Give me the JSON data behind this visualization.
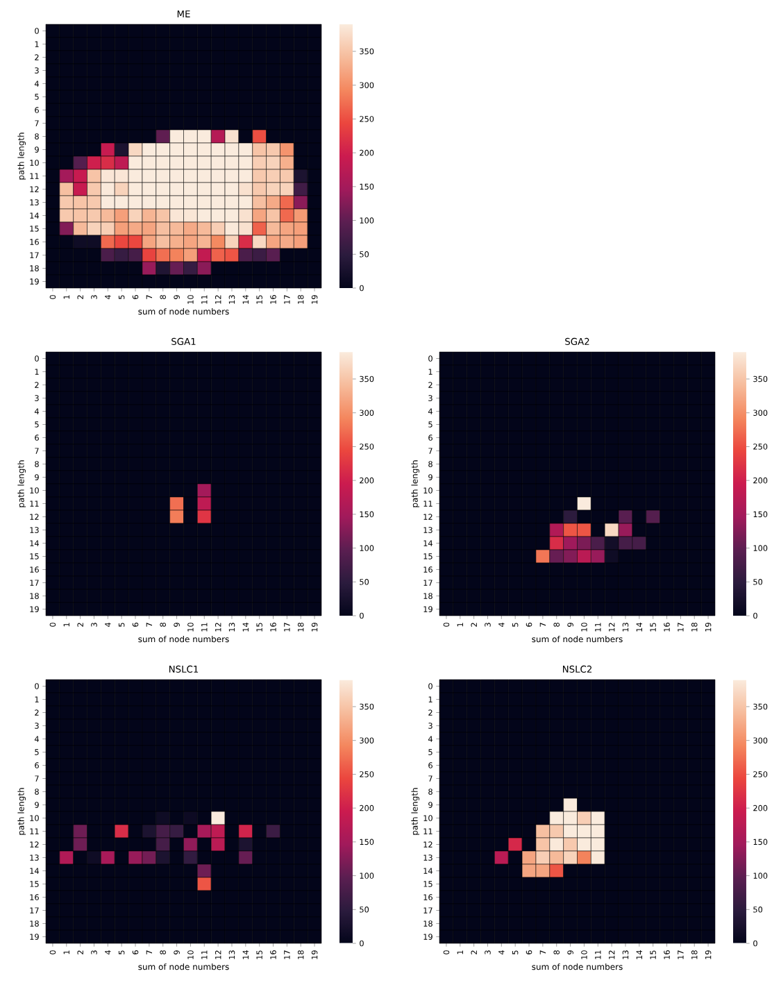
{
  "chart_data": [
    {
      "type": "heatmap",
      "title": "ME",
      "xlabel": "sum of node numbers",
      "ylabel": "path length",
      "categories": [
        "0",
        "1",
        "2",
        "3",
        "4",
        "5",
        "6",
        "7",
        "8",
        "9",
        "10",
        "11",
        "12",
        "13",
        "14",
        "15",
        "16",
        "17",
        "18",
        "19"
      ],
      "y_categories": [
        "0",
        "1",
        "2",
        "3",
        "4",
        "5",
        "6",
        "7",
        "8",
        "9",
        "10",
        "11",
        "12",
        "13",
        "14",
        "15",
        "16",
        "17",
        "18",
        "19"
      ],
      "clim": [
        0,
        390
      ],
      "cticks": [
        0,
        50,
        100,
        150,
        200,
        250,
        300,
        350
      ],
      "cells": [
        [
          0,
          0,
          0,
          0,
          0,
          0,
          0,
          0,
          0,
          0,
          0,
          0,
          0,
          0,
          0,
          0,
          0,
          0,
          0,
          0
        ],
        [
          0,
          0,
          0,
          0,
          0,
          0,
          0,
          0,
          0,
          0,
          0,
          0,
          0,
          0,
          0,
          0,
          0,
          0,
          0,
          0
        ],
        [
          0,
          0,
          0,
          0,
          0,
          0,
          0,
          0,
          0,
          0,
          0,
          0,
          0,
          0,
          0,
          0,
          0,
          0,
          0,
          0
        ],
        [
          0,
          0,
          0,
          0,
          0,
          0,
          0,
          0,
          0,
          0,
          0,
          0,
          0,
          0,
          0,
          0,
          0,
          0,
          0,
          0
        ],
        [
          0,
          0,
          0,
          0,
          0,
          0,
          0,
          0,
          0,
          0,
          0,
          0,
          0,
          0,
          0,
          0,
          0,
          0,
          0,
          0
        ],
        [
          0,
          0,
          0,
          0,
          0,
          0,
          0,
          0,
          0,
          0,
          0,
          0,
          0,
          0,
          0,
          0,
          0,
          0,
          0,
          0
        ],
        [
          0,
          0,
          0,
          0,
          0,
          0,
          0,
          0,
          0,
          0,
          0,
          0,
          0,
          0,
          0,
          0,
          0,
          0,
          0,
          0
        ],
        [
          0,
          0,
          0,
          0,
          0,
          0,
          0,
          0,
          0,
          0,
          0,
          0,
          0,
          0,
          0,
          0,
          0,
          0,
          0,
          0
        ],
        [
          0,
          0,
          0,
          0,
          0,
          0,
          0,
          0,
          100,
          390,
          390,
          390,
          170,
          380,
          0,
          250,
          0,
          0,
          0,
          0
        ],
        [
          0,
          0,
          0,
          0,
          190,
          30,
          370,
          390,
          390,
          390,
          390,
          390,
          390,
          390,
          390,
          350,
          355,
          305,
          0,
          0
        ],
        [
          0,
          0,
          90,
          200,
          215,
          180,
          390,
          390,
          390,
          390,
          390,
          390,
          390,
          390,
          390,
          360,
          365,
          330,
          0,
          0
        ],
        [
          0,
          150,
          190,
          350,
          385,
          385,
          390,
          390,
          390,
          390,
          390,
          390,
          390,
          390,
          390,
          355,
          360,
          355,
          30,
          0
        ],
        [
          0,
          345,
          190,
          355,
          388,
          365,
          390,
          390,
          390,
          390,
          390,
          390,
          390,
          390,
          380,
          355,
          365,
          365,
          70,
          0
        ],
        [
          0,
          355,
          350,
          355,
          390,
          390,
          390,
          390,
          390,
          390,
          390,
          390,
          390,
          390,
          390,
          345,
          325,
          270,
          130,
          0
        ],
        [
          0,
          355,
          350,
          355,
          340,
          315,
          365,
          335,
          350,
          385,
          385,
          390,
          390,
          390,
          380,
          320,
          350,
          270,
          310,
          0
        ],
        [
          0,
          125,
          340,
          365,
          360,
          315,
          325,
          320,
          345,
          340,
          325,
          340,
          360,
          388,
          380,
          265,
          340,
          320,
          315,
          0
        ],
        [
          0,
          0,
          15,
          15,
          270,
          245,
          245,
          320,
          345,
          330,
          320,
          335,
          295,
          365,
          215,
          370,
          320,
          325,
          315,
          0
        ],
        [
          0,
          0,
          0,
          0,
          80,
          60,
          75,
          240,
          275,
          290,
          315,
          185,
          265,
          255,
          80,
          65,
          95,
          0,
          0,
          0
        ],
        [
          0,
          0,
          0,
          0,
          0,
          0,
          0,
          140,
          35,
          105,
          60,
          130,
          0,
          0,
          0,
          0,
          0,
          0,
          0,
          0
        ],
        [
          0,
          0,
          0,
          0,
          0,
          0,
          0,
          0,
          0,
          0,
          0,
          0,
          0,
          0,
          0,
          0,
          0,
          0,
          0,
          0
        ]
      ]
    },
    {
      "type": "heatmap",
      "title": "SGA1",
      "xlabel": "sum of node numbers",
      "ylabel": "path length",
      "categories": [
        "0",
        "1",
        "2",
        "3",
        "4",
        "5",
        "6",
        "7",
        "8",
        "9",
        "10",
        "11",
        "12",
        "13",
        "14",
        "15",
        "16",
        "17",
        "18",
        "19"
      ],
      "y_categories": [
        "0",
        "1",
        "2",
        "3",
        "4",
        "5",
        "6",
        "7",
        "8",
        "9",
        "10",
        "11",
        "12",
        "13",
        "14",
        "15",
        "16",
        "17",
        "18",
        "19"
      ],
      "clim": [
        0,
        390
      ],
      "cticks": [
        0,
        50,
        100,
        150,
        200,
        250,
        300,
        350
      ],
      "cells": [
        [
          0,
          0,
          0,
          0,
          0,
          0,
          0,
          0,
          0,
          0,
          0,
          0,
          0,
          0,
          0,
          0,
          0,
          0,
          0,
          0
        ],
        [
          0,
          0,
          0,
          0,
          0,
          0,
          0,
          0,
          0,
          0,
          0,
          0,
          0,
          0,
          0,
          0,
          0,
          0,
          0,
          0
        ],
        [
          0,
          0,
          0,
          0,
          0,
          0,
          0,
          0,
          0,
          0,
          0,
          0,
          0,
          0,
          0,
          0,
          0,
          0,
          0,
          0
        ],
        [
          0,
          0,
          0,
          0,
          0,
          0,
          0,
          0,
          0,
          0,
          0,
          0,
          0,
          0,
          0,
          0,
          0,
          0,
          0,
          0
        ],
        [
          0,
          0,
          0,
          0,
          0,
          0,
          0,
          0,
          0,
          0,
          0,
          0,
          0,
          0,
          0,
          0,
          0,
          0,
          0,
          0
        ],
        [
          0,
          0,
          0,
          0,
          0,
          0,
          0,
          0,
          0,
          0,
          0,
          0,
          0,
          0,
          0,
          0,
          0,
          0,
          0,
          0
        ],
        [
          0,
          0,
          0,
          0,
          0,
          0,
          0,
          0,
          0,
          0,
          0,
          0,
          0,
          0,
          0,
          0,
          0,
          0,
          0,
          0
        ],
        [
          0,
          0,
          0,
          0,
          0,
          0,
          0,
          0,
          0,
          0,
          0,
          0,
          0,
          0,
          0,
          0,
          0,
          0,
          0,
          0
        ],
        [
          0,
          0,
          0,
          0,
          0,
          0,
          0,
          0,
          0,
          0,
          0,
          0,
          0,
          0,
          0,
          0,
          0,
          0,
          0,
          0
        ],
        [
          0,
          0,
          0,
          0,
          0,
          0,
          0,
          0,
          0,
          0,
          0,
          0,
          0,
          0,
          0,
          0,
          0,
          0,
          0,
          0
        ],
        [
          0,
          0,
          0,
          0,
          0,
          0,
          0,
          0,
          0,
          0,
          0,
          150,
          0,
          0,
          0,
          0,
          0,
          0,
          0,
          0
        ],
        [
          0,
          0,
          0,
          0,
          0,
          0,
          0,
          0,
          0,
          275,
          0,
          180,
          0,
          0,
          0,
          0,
          0,
          0,
          0,
          0
        ],
        [
          0,
          0,
          0,
          0,
          0,
          0,
          0,
          0,
          0,
          285,
          0,
          225,
          0,
          0,
          0,
          0,
          0,
          0,
          0,
          0
        ],
        [
          0,
          0,
          0,
          0,
          0,
          0,
          0,
          0,
          0,
          0,
          0,
          0,
          0,
          0,
          0,
          0,
          0,
          0,
          0,
          0
        ],
        [
          0,
          0,
          0,
          0,
          0,
          0,
          0,
          0,
          0,
          0,
          0,
          0,
          0,
          0,
          0,
          0,
          0,
          0,
          0,
          0
        ],
        [
          0,
          0,
          0,
          0,
          0,
          0,
          0,
          0,
          0,
          0,
          0,
          0,
          0,
          0,
          0,
          0,
          0,
          0,
          0,
          0
        ],
        [
          0,
          0,
          0,
          0,
          0,
          0,
          0,
          0,
          0,
          0,
          0,
          0,
          0,
          0,
          0,
          0,
          0,
          0,
          0,
          0
        ],
        [
          0,
          0,
          0,
          0,
          0,
          0,
          0,
          0,
          0,
          0,
          0,
          0,
          0,
          0,
          0,
          0,
          0,
          0,
          0,
          0
        ],
        [
          0,
          0,
          0,
          0,
          0,
          0,
          0,
          0,
          0,
          0,
          0,
          0,
          0,
          0,
          0,
          0,
          0,
          0,
          0,
          0
        ],
        [
          0,
          0,
          0,
          0,
          0,
          0,
          0,
          0,
          0,
          0,
          0,
          0,
          0,
          0,
          0,
          0,
          0,
          0,
          0,
          0
        ]
      ]
    },
    {
      "type": "heatmap",
      "title": "SGA2",
      "xlabel": "sum of node numbers",
      "ylabel": "path length",
      "categories": [
        "0",
        "1",
        "2",
        "3",
        "4",
        "5",
        "6",
        "7",
        "8",
        "9",
        "10",
        "11",
        "12",
        "13",
        "14",
        "15",
        "16",
        "17",
        "18",
        "19"
      ],
      "y_categories": [
        "0",
        "1",
        "2",
        "3",
        "4",
        "5",
        "6",
        "7",
        "8",
        "9",
        "10",
        "11",
        "12",
        "13",
        "14",
        "15",
        "16",
        "17",
        "18",
        "19"
      ],
      "clim": [
        0,
        390
      ],
      "cticks": [
        0,
        50,
        100,
        150,
        200,
        250,
        300,
        350
      ],
      "cells": [
        [
          0,
          0,
          0,
          0,
          0,
          0,
          0,
          0,
          0,
          0,
          0,
          0,
          0,
          0,
          0,
          0,
          0,
          0,
          0,
          0
        ],
        [
          0,
          0,
          0,
          0,
          0,
          0,
          0,
          0,
          0,
          0,
          0,
          0,
          0,
          0,
          0,
          0,
          0,
          0,
          0,
          0
        ],
        [
          0,
          0,
          0,
          0,
          0,
          0,
          0,
          0,
          0,
          0,
          0,
          0,
          0,
          0,
          0,
          0,
          0,
          0,
          0,
          0
        ],
        [
          0,
          0,
          0,
          0,
          0,
          0,
          0,
          0,
          0,
          0,
          0,
          0,
          0,
          0,
          0,
          0,
          0,
          0,
          0,
          0
        ],
        [
          0,
          0,
          0,
          0,
          0,
          0,
          0,
          0,
          0,
          0,
          0,
          0,
          0,
          0,
          0,
          0,
          0,
          0,
          0,
          0
        ],
        [
          0,
          0,
          0,
          0,
          0,
          0,
          0,
          0,
          0,
          0,
          0,
          0,
          0,
          0,
          0,
          0,
          0,
          0,
          0,
          0
        ],
        [
          0,
          0,
          0,
          0,
          0,
          0,
          0,
          0,
          0,
          0,
          0,
          0,
          0,
          0,
          0,
          0,
          0,
          0,
          0,
          0
        ],
        [
          0,
          0,
          0,
          0,
          0,
          0,
          0,
          0,
          0,
          0,
          0,
          0,
          0,
          0,
          0,
          0,
          0,
          0,
          0,
          0
        ],
        [
          0,
          0,
          0,
          0,
          0,
          0,
          0,
          0,
          0,
          0,
          0,
          0,
          0,
          0,
          0,
          0,
          0,
          0,
          0,
          0
        ],
        [
          0,
          0,
          0,
          0,
          0,
          0,
          0,
          0,
          0,
          0,
          0,
          0,
          0,
          0,
          0,
          0,
          0,
          0,
          0,
          0
        ],
        [
          0,
          0,
          0,
          0,
          0,
          0,
          0,
          0,
          0,
          0,
          0,
          0,
          0,
          0,
          0,
          0,
          0,
          0,
          0,
          0
        ],
        [
          0,
          0,
          0,
          0,
          0,
          0,
          0,
          0,
          0,
          0,
          390,
          0,
          0,
          0,
          0,
          0,
          0,
          0,
          0,
          0
        ],
        [
          0,
          0,
          0,
          0,
          0,
          0,
          0,
          0,
          0,
          50,
          0,
          0,
          0,
          95,
          0,
          90,
          0,
          0,
          0,
          0
        ],
        [
          0,
          0,
          0,
          0,
          0,
          0,
          0,
          0,
          165,
          255,
          255,
          0,
          370,
          140,
          0,
          0,
          0,
          0,
          0,
          0
        ],
        [
          0,
          0,
          0,
          0,
          0,
          0,
          0,
          0,
          215,
          145,
          120,
          80,
          20,
          75,
          75,
          0,
          0,
          0,
          0,
          0
        ],
        [
          0,
          0,
          0,
          0,
          0,
          0,
          0,
          280,
          105,
          125,
          175,
          140,
          15,
          0,
          0,
          0,
          0,
          0,
          0,
          0
        ],
        [
          0,
          0,
          0,
          0,
          0,
          0,
          0,
          0,
          0,
          0,
          0,
          0,
          0,
          0,
          0,
          0,
          0,
          0,
          0,
          0
        ],
        [
          0,
          0,
          0,
          0,
          0,
          0,
          0,
          0,
          0,
          0,
          0,
          0,
          0,
          0,
          0,
          0,
          0,
          0,
          0,
          0
        ],
        [
          0,
          0,
          0,
          0,
          0,
          0,
          0,
          0,
          0,
          0,
          0,
          0,
          0,
          0,
          0,
          0,
          0,
          0,
          0,
          0
        ],
        [
          0,
          0,
          0,
          0,
          0,
          0,
          0,
          0,
          0,
          0,
          0,
          0,
          0,
          0,
          0,
          0,
          0,
          0,
          0,
          0
        ]
      ]
    },
    {
      "type": "heatmap",
      "title": "NSLC1",
      "xlabel": "sum of node numbers",
      "ylabel": "path length",
      "categories": [
        "0",
        "1",
        "2",
        "3",
        "4",
        "5",
        "6",
        "7",
        "8",
        "9",
        "10",
        "11",
        "12",
        "13",
        "14",
        "15",
        "16",
        "17",
        "18",
        "19"
      ],
      "y_categories": [
        "0",
        "1",
        "2",
        "3",
        "4",
        "5",
        "6",
        "7",
        "8",
        "9",
        "10",
        "11",
        "12",
        "13",
        "14",
        "15",
        "16",
        "17",
        "18",
        "19"
      ],
      "clim": [
        0,
        390
      ],
      "cticks": [
        0,
        50,
        100,
        150,
        200,
        250,
        300,
        350
      ],
      "cells": [
        [
          0,
          0,
          0,
          0,
          0,
          0,
          0,
          0,
          0,
          0,
          0,
          0,
          0,
          0,
          0,
          0,
          0,
          0,
          0,
          0
        ],
        [
          0,
          0,
          0,
          0,
          0,
          0,
          0,
          0,
          0,
          0,
          0,
          0,
          0,
          0,
          0,
          0,
          0,
          0,
          0,
          0
        ],
        [
          0,
          0,
          0,
          0,
          0,
          0,
          0,
          0,
          0,
          0,
          0,
          0,
          0,
          0,
          0,
          0,
          0,
          0,
          0,
          0
        ],
        [
          0,
          0,
          0,
          0,
          0,
          0,
          0,
          0,
          0,
          0,
          0,
          0,
          0,
          0,
          0,
          0,
          0,
          0,
          0,
          0
        ],
        [
          0,
          0,
          0,
          0,
          0,
          0,
          0,
          0,
          0,
          0,
          0,
          0,
          0,
          0,
          0,
          0,
          0,
          0,
          0,
          0
        ],
        [
          0,
          0,
          0,
          0,
          0,
          0,
          0,
          0,
          0,
          0,
          0,
          0,
          0,
          0,
          0,
          0,
          0,
          0,
          0,
          0
        ],
        [
          0,
          0,
          0,
          0,
          0,
          0,
          0,
          0,
          0,
          0,
          0,
          0,
          0,
          0,
          0,
          0,
          0,
          0,
          0,
          0
        ],
        [
          0,
          0,
          0,
          0,
          0,
          0,
          0,
          0,
          0,
          0,
          0,
          0,
          0,
          0,
          0,
          0,
          0,
          0,
          0,
          0
        ],
        [
          0,
          0,
          0,
          0,
          0,
          0,
          0,
          0,
          0,
          0,
          0,
          0,
          0,
          0,
          0,
          0,
          0,
          0,
          0,
          0
        ],
        [
          0,
          0,
          0,
          0,
          0,
          0,
          0,
          0,
          0,
          0,
          0,
          0,
          0,
          0,
          0,
          0,
          0,
          0,
          0,
          0
        ],
        [
          0,
          0,
          0,
          0,
          0,
          0,
          0,
          0,
          15,
          0,
          12,
          0,
          390,
          0,
          0,
          0,
          0,
          0,
          0,
          0
        ],
        [
          0,
          0,
          110,
          0,
          0,
          215,
          0,
          30,
          75,
          60,
          0,
          155,
          180,
          0,
          205,
          0,
          65,
          0,
          0,
          0
        ],
        [
          0,
          0,
          110,
          0,
          0,
          0,
          0,
          0,
          75,
          0,
          135,
          0,
          175,
          0,
          30,
          0,
          0,
          0,
          0,
          0
        ],
        [
          0,
          165,
          0,
          15,
          155,
          0,
          140,
          115,
          30,
          0,
          55,
          0,
          0,
          0,
          105,
          0,
          0,
          0,
          0,
          0
        ],
        [
          0,
          0,
          0,
          0,
          0,
          0,
          0,
          0,
          0,
          0,
          0,
          110,
          0,
          0,
          0,
          0,
          0,
          0,
          0,
          0
        ],
        [
          0,
          0,
          0,
          0,
          0,
          0,
          0,
          0,
          0,
          0,
          0,
          255,
          0,
          0,
          0,
          0,
          0,
          0,
          0,
          0
        ],
        [
          0,
          0,
          0,
          0,
          0,
          0,
          0,
          0,
          0,
          0,
          0,
          0,
          0,
          0,
          0,
          0,
          0,
          0,
          0,
          0
        ],
        [
          0,
          0,
          0,
          0,
          0,
          0,
          0,
          0,
          0,
          0,
          0,
          0,
          0,
          0,
          0,
          0,
          0,
          0,
          0,
          0
        ],
        [
          0,
          0,
          0,
          0,
          0,
          0,
          0,
          0,
          0,
          0,
          0,
          0,
          0,
          0,
          0,
          0,
          0,
          0,
          0,
          0
        ],
        [
          0,
          0,
          0,
          0,
          0,
          0,
          0,
          0,
          0,
          0,
          0,
          0,
          0,
          0,
          0,
          0,
          0,
          0,
          0,
          0
        ]
      ]
    },
    {
      "type": "heatmap",
      "title": "NSLC2",
      "xlabel": "sum of node numbers",
      "ylabel": "path length",
      "categories": [
        "0",
        "1",
        "2",
        "3",
        "4",
        "5",
        "6",
        "7",
        "8",
        "9",
        "10",
        "11",
        "12",
        "13",
        "14",
        "15",
        "16",
        "17",
        "18",
        "19"
      ],
      "y_categories": [
        "0",
        "1",
        "2",
        "3",
        "4",
        "5",
        "6",
        "7",
        "8",
        "9",
        "10",
        "11",
        "12",
        "13",
        "14",
        "15",
        "16",
        "17",
        "18",
        "19"
      ],
      "clim": [
        0,
        390
      ],
      "cticks": [
        0,
        50,
        100,
        150,
        200,
        250,
        300,
        350
      ],
      "cells": [
        [
          0,
          0,
          0,
          0,
          0,
          0,
          0,
          0,
          0,
          0,
          0,
          0,
          0,
          0,
          0,
          0,
          0,
          0,
          0,
          0
        ],
        [
          0,
          0,
          0,
          0,
          0,
          0,
          0,
          0,
          0,
          0,
          0,
          0,
          0,
          0,
          0,
          0,
          0,
          0,
          0,
          0
        ],
        [
          0,
          0,
          0,
          0,
          0,
          0,
          0,
          0,
          0,
          0,
          0,
          0,
          0,
          0,
          0,
          0,
          0,
          0,
          0,
          0
        ],
        [
          0,
          0,
          0,
          0,
          0,
          0,
          0,
          0,
          0,
          0,
          0,
          0,
          0,
          0,
          0,
          0,
          0,
          0,
          0,
          0
        ],
        [
          0,
          0,
          0,
          0,
          0,
          0,
          0,
          0,
          0,
          0,
          0,
          0,
          0,
          0,
          0,
          0,
          0,
          0,
          0,
          0
        ],
        [
          0,
          0,
          0,
          0,
          0,
          0,
          0,
          0,
          0,
          0,
          0,
          0,
          0,
          0,
          0,
          0,
          0,
          0,
          0,
          0
        ],
        [
          0,
          0,
          0,
          0,
          0,
          0,
          0,
          0,
          0,
          0,
          0,
          0,
          0,
          0,
          0,
          0,
          0,
          0,
          0,
          0
        ],
        [
          0,
          0,
          0,
          0,
          0,
          0,
          0,
          0,
          0,
          0,
          0,
          0,
          0,
          0,
          0,
          0,
          0,
          0,
          0,
          0
        ],
        [
          0,
          0,
          0,
          0,
          0,
          0,
          0,
          0,
          0,
          0,
          0,
          0,
          0,
          0,
          0,
          0,
          0,
          0,
          0,
          0
        ],
        [
          0,
          0,
          0,
          0,
          0,
          0,
          0,
          0,
          0,
          390,
          0,
          0,
          0,
          0,
          0,
          0,
          0,
          0,
          0,
          0
        ],
        [
          0,
          0,
          0,
          0,
          0,
          0,
          0,
          0,
          390,
          390,
          360,
          390,
          0,
          0,
          0,
          0,
          0,
          0,
          0,
          0
        ],
        [
          0,
          0,
          0,
          0,
          0,
          0,
          0,
          345,
          355,
          390,
          390,
          390,
          0,
          0,
          0,
          0,
          0,
          0,
          0,
          0
        ],
        [
          0,
          0,
          0,
          0,
          0,
          210,
          0,
          350,
          388,
          355,
          390,
          390,
          0,
          0,
          0,
          0,
          0,
          0,
          0,
          0
        ],
        [
          0,
          0,
          0,
          0,
          175,
          0,
          320,
          360,
          340,
          365,
          290,
          388,
          0,
          0,
          0,
          0,
          0,
          0,
          0,
          0
        ],
        [
          0,
          0,
          0,
          0,
          0,
          0,
          320,
          320,
          255,
          0,
          0,
          0,
          0,
          0,
          0,
          0,
          0,
          0,
          0,
          0
        ],
        [
          0,
          0,
          0,
          0,
          0,
          0,
          0,
          0,
          0,
          0,
          0,
          0,
          0,
          0,
          0,
          0,
          0,
          0,
          0,
          0
        ],
        [
          0,
          0,
          0,
          0,
          0,
          0,
          0,
          0,
          0,
          0,
          0,
          0,
          0,
          0,
          0,
          0,
          0,
          0,
          0,
          0
        ],
        [
          0,
          0,
          0,
          0,
          0,
          0,
          0,
          0,
          0,
          0,
          0,
          0,
          0,
          0,
          0,
          0,
          0,
          0,
          0,
          0
        ],
        [
          0,
          0,
          0,
          0,
          0,
          0,
          0,
          0,
          0,
          0,
          0,
          0,
          0,
          0,
          0,
          0,
          0,
          0,
          0,
          0
        ],
        [
          0,
          0,
          0,
          0,
          0,
          0,
          0,
          0,
          0,
          0,
          0,
          0,
          0,
          0,
          0,
          0,
          0,
          0,
          0,
          0
        ]
      ]
    }
  ]
}
